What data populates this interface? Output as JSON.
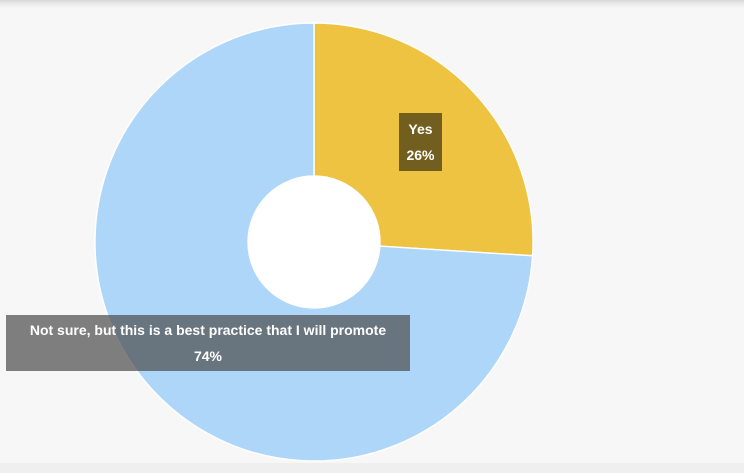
{
  "chart_data": {
    "type": "pie",
    "variant": "donut",
    "title": "",
    "legend": "none",
    "slices": [
      {
        "label": "Yes",
        "value": 26,
        "display_value": "26%",
        "color": "#efc342"
      },
      {
        "label": "Not sure, but this is a best practice that I will promote",
        "value": 74,
        "display_value": "74%",
        "color": "#aed6f8"
      }
    ]
  }
}
